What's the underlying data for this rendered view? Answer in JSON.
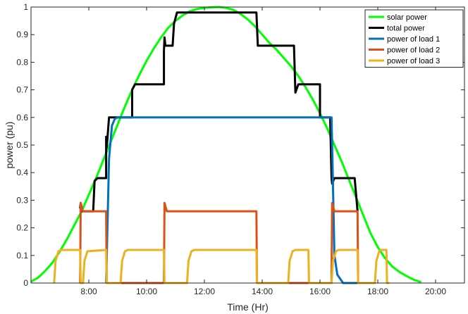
{
  "chart_data": {
    "type": "line",
    "title": "",
    "xlabel": "Time (Hr)",
    "ylabel": "power (pu)",
    "xlim": [
      6,
      21
    ],
    "ylim": [
      0,
      1
    ],
    "grid": false,
    "legend_position": "top-right",
    "x_ticks": [
      {
        "value": 8,
        "label": "8:00"
      },
      {
        "value": 10,
        "label": "10:00"
      },
      {
        "value": 12,
        "label": "12:00"
      },
      {
        "value": 14,
        "label": "14:00"
      },
      {
        "value": 16,
        "label": "16:00"
      },
      {
        "value": 18,
        "label": "18:00"
      },
      {
        "value": 20,
        "label": "20:00"
      }
    ],
    "y_ticks": [
      {
        "value": 0,
        "label": "0"
      },
      {
        "value": 0.1,
        "label": "0.1"
      },
      {
        "value": 0.2,
        "label": "0.2"
      },
      {
        "value": 0.3,
        "label": "0.3"
      },
      {
        "value": 0.4,
        "label": "0.4"
      },
      {
        "value": 0.5,
        "label": "0.5"
      },
      {
        "value": 0.6,
        "label": "0.6"
      },
      {
        "value": 0.7,
        "label": "0.7"
      },
      {
        "value": 0.8,
        "label": "0.8"
      },
      {
        "value": 0.9,
        "label": "0.9"
      },
      {
        "value": 1,
        "label": "1"
      }
    ],
    "series": [
      {
        "name": "solar power",
        "color": "#00ff00",
        "x": [
          6.0,
          6.25,
          6.5,
          6.75,
          7.0,
          7.25,
          7.5,
          7.75,
          8.0,
          8.25,
          8.5,
          8.75,
          9.0,
          9.25,
          9.5,
          9.75,
          10.0,
          10.25,
          10.5,
          10.75,
          11.0,
          11.25,
          11.5,
          11.75,
          12.0,
          12.25,
          12.5,
          12.75,
          13.0,
          13.25,
          13.5,
          13.75,
          14.0,
          14.25,
          14.5,
          14.75,
          15.0,
          15.25,
          15.5,
          15.75,
          16.0,
          16.25,
          16.5,
          16.75,
          17.0,
          17.25,
          17.5,
          17.75,
          18.0,
          18.25,
          18.5,
          18.75,
          19.0,
          19.25,
          19.5
        ],
        "y": [
          0.005,
          0.02,
          0.045,
          0.075,
          0.115,
          0.16,
          0.21,
          0.26,
          0.32,
          0.38,
          0.445,
          0.51,
          0.575,
          0.64,
          0.7,
          0.755,
          0.805,
          0.85,
          0.89,
          0.925,
          0.95,
          0.97,
          0.985,
          0.993,
          0.997,
          0.999,
          1.0,
          0.997,
          0.99,
          0.975,
          0.955,
          0.93,
          0.9,
          0.87,
          0.845,
          0.815,
          0.785,
          0.75,
          0.71,
          0.665,
          0.615,
          0.56,
          0.5,
          0.44,
          0.375,
          0.31,
          0.245,
          0.18,
          0.13,
          0.09,
          0.06,
          0.04,
          0.025,
          0.012,
          0.003
        ]
      },
      {
        "name": "total power",
        "color": "#000000",
        "x": [
          7.7,
          7.72,
          7.76,
          7.8,
          7.84,
          7.88,
          8.15,
          8.2,
          8.3,
          8.6,
          8.6,
          8.62,
          8.7,
          8.85,
          8.9,
          9.0,
          9.5,
          9.5,
          9.6,
          9.75,
          10.6,
          10.6,
          10.62,
          10.65,
          10.9,
          10.95,
          11.05,
          11.4,
          11.45,
          11.55,
          13.8,
          13.85,
          13.95,
          14.9,
          14.9,
          15.1,
          15.15,
          15.25,
          15.5,
          15.6,
          15.7,
          16.0,
          16.0,
          16.1,
          16.35,
          16.4,
          16.42,
          16.5,
          16.6,
          17.2,
          17.3,
          17.3
        ],
        "y": [
          0.27,
          0.29,
          0.26,
          0.26,
          0.26,
          0.26,
          0.26,
          0.37,
          0.38,
          0.38,
          0.53,
          0.49,
          0.6,
          0.6,
          0.6,
          0.6,
          0.6,
          0.7,
          0.72,
          0.72,
          0.72,
          0.84,
          0.89,
          0.86,
          0.86,
          0.94,
          0.98,
          0.98,
          0.98,
          0.98,
          0.98,
          0.86,
          0.86,
          0.86,
          0.86,
          0.86,
          0.69,
          0.72,
          0.72,
          0.72,
          0.72,
          0.72,
          0.6,
          0.6,
          0.6,
          0.38,
          0.36,
          0.38,
          0.38,
          0.38,
          0.26,
          0.26
        ]
      },
      {
        "name": "power of load 1",
        "color": "#0072bd",
        "x": [
          8.6,
          8.7,
          8.8,
          8.9,
          9.0,
          9.2,
          16.4,
          16.5,
          16.6,
          16.8,
          17.0,
          17.3
        ],
        "y": [
          0.0,
          0.45,
          0.57,
          0.595,
          0.6,
          0.6,
          0.6,
          0.1,
          0.03,
          0.0,
          0.0,
          0.0
        ]
      },
      {
        "name": "power of load 2",
        "color": "#d95319",
        "x": [
          7.7,
          7.72,
          7.8,
          8.6,
          8.62,
          8.7,
          10.6,
          10.62,
          10.7,
          13.8,
          13.82,
          13.9,
          16.4,
          16.42,
          16.5,
          17.3,
          17.32,
          17.4
        ],
        "y": [
          0.0,
          0.29,
          0.26,
          0.26,
          0.0,
          0.0,
          0.0,
          0.29,
          0.26,
          0.26,
          0.0,
          0.0,
          0.0,
          0.29,
          0.26,
          0.26,
          0.0,
          0.0
        ]
      },
      {
        "name": "power of load 3",
        "color": "#edb120",
        "x": [
          6.8,
          6.85,
          6.95,
          7.05,
          7.7,
          7.72,
          7.8,
          7.85,
          7.95,
          8.6,
          8.62,
          8.7,
          9.1,
          9.15,
          9.25,
          9.35,
          10.6,
          10.62,
          10.7,
          11.4,
          11.45,
          11.55,
          11.65,
          13.8,
          13.82,
          13.9,
          14.9,
          14.95,
          15.05,
          15.15,
          15.6,
          15.62,
          15.7,
          16.4,
          16.45,
          16.55,
          16.65,
          17.3,
          17.32,
          17.4,
          17.9,
          17.95,
          18.05,
          18.1,
          18.3,
          18.32,
          18.4
        ],
        "y": [
          0.0,
          0.08,
          0.115,
          0.12,
          0.12,
          0.0,
          0.0,
          0.08,
          0.115,
          0.12,
          0.0,
          0.0,
          0.0,
          0.08,
          0.115,
          0.12,
          0.12,
          0.0,
          0.0,
          0.0,
          0.08,
          0.115,
          0.12,
          0.12,
          0.0,
          0.0,
          0.0,
          0.08,
          0.115,
          0.12,
          0.12,
          0.0,
          0.0,
          0.0,
          0.08,
          0.115,
          0.12,
          0.12,
          0.0,
          0.0,
          0.0,
          0.08,
          0.115,
          0.12,
          0.12,
          0.0,
          0.0
        ]
      }
    ]
  }
}
